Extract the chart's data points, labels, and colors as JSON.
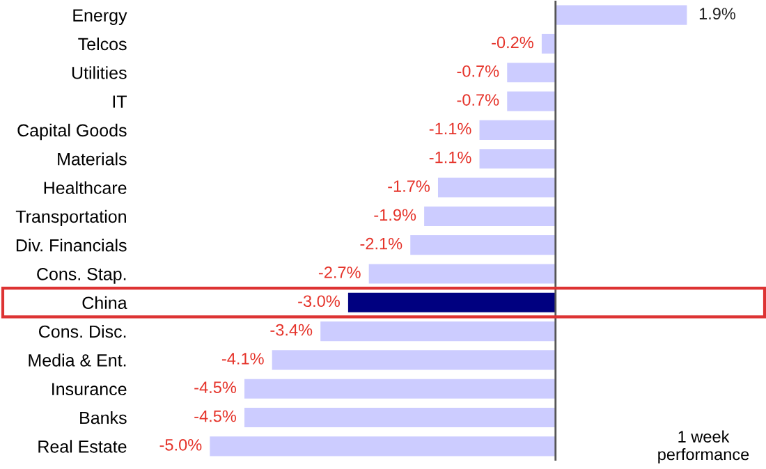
{
  "chart_data": {
    "type": "bar",
    "orientation": "horizontal",
    "categories": [
      "Energy",
      "Telcos",
      "Utilities",
      "IT",
      "Capital Goods",
      "Materials",
      "Healthcare",
      "Transportation",
      "Div. Financials",
      "Cons. Stap.",
      "China",
      "Cons. Disc.",
      "Media & Ent.",
      "Insurance",
      "Banks",
      "Real Estate"
    ],
    "values": [
      1.9,
      -0.2,
      -0.7,
      -0.7,
      -1.1,
      -1.1,
      -1.7,
      -1.9,
      -2.1,
      -2.7,
      -3.0,
      -3.4,
      -4.1,
      -4.5,
      -4.5,
      -5.0
    ],
    "value_labels": [
      "1.9%",
      "-0.2%",
      "-0.7%",
      "-0.7%",
      "-1.1%",
      "-1.1%",
      "-1.7%",
      "-1.9%",
      "-2.1%",
      "-2.7%",
      "-3.0%",
      "-3.4%",
      "-4.1%",
      "-4.5%",
      "-4.5%",
      "-5.0%"
    ],
    "colors": [
      "#ccccff",
      "#ccccff",
      "#ccccff",
      "#ccccff",
      "#ccccff",
      "#ccccff",
      "#ccccff",
      "#ccccff",
      "#ccccff",
      "#ccccff",
      "#000080",
      "#ccccff",
      "#ccccff",
      "#ccccff",
      "#ccccff",
      "#ccccff"
    ],
    "tick_labels": "y",
    "grid": false,
    "legend": false,
    "annotations": [
      "1 week\nperformance"
    ]
  }
}
